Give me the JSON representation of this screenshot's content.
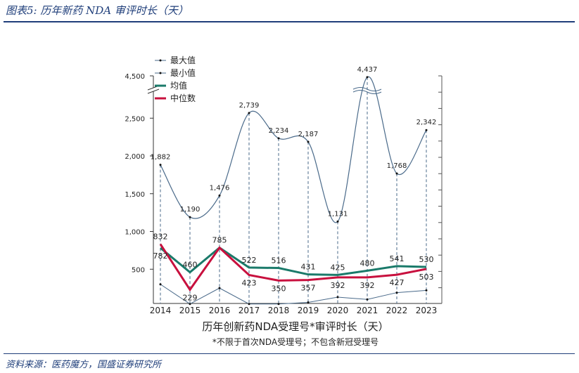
{
  "header": {
    "title": "图表5:  历年新药 NDA 审评时长（天）"
  },
  "footer": {
    "source": "资料来源：医药魔方，国盛证券研究所"
  },
  "chart_data": {
    "type": "line",
    "title": "历年创新药NDA受理号*审评时长（天）",
    "subtitle": "*不限于首次NDA受理号；不包含新冠受理号",
    "categories": [
      "2014",
      "2015",
      "2016",
      "2017",
      "2018",
      "2019",
      "2020",
      "2021",
      "2022",
      "2023"
    ],
    "yticks": [
      "500",
      "1,000",
      "1,500",
      "2,000",
      "2,500",
      "4,500"
    ],
    "ylim": [
      0,
      4500
    ],
    "axis_break": [
      2500,
      4300
    ],
    "legend_position": "top-left",
    "series": [
      {
        "name": "最大值",
        "color": "#4a6a8a",
        "values": [
          1882,
          1190,
          1476,
          2739,
          2234,
          2187,
          1131,
          4437,
          1768,
          2342
        ],
        "labels": [
          "1,882",
          "1,190",
          "1,476",
          "2,739",
          "2,234",
          "2,187",
          "1,131",
          "4,437",
          "1,768",
          "2,342"
        ]
      },
      {
        "name": "最小值",
        "color": "#4a6a8a",
        "values": [
          300,
          40,
          250,
          40,
          40,
          60,
          130,
          100,
          190,
          220
        ],
        "labels": []
      },
      {
        "name": "均值",
        "color": "#1a7a6a",
        "values": [
          782,
          460,
          785,
          522,
          516,
          431,
          425,
          480,
          541,
          530
        ],
        "labels": [
          "782",
          "460",
          "785",
          "522",
          "516",
          "431",
          "425",
          "480",
          "541",
          "530"
        ]
      },
      {
        "name": "中位数",
        "color": "#c8103e",
        "values": [
          832,
          229,
          785,
          423,
          350,
          357,
          392,
          392,
          427,
          503
        ],
        "labels": [
          "832",
          "229",
          "",
          "423",
          "350",
          "357",
          "392",
          "392",
          "427",
          "503"
        ]
      }
    ]
  }
}
